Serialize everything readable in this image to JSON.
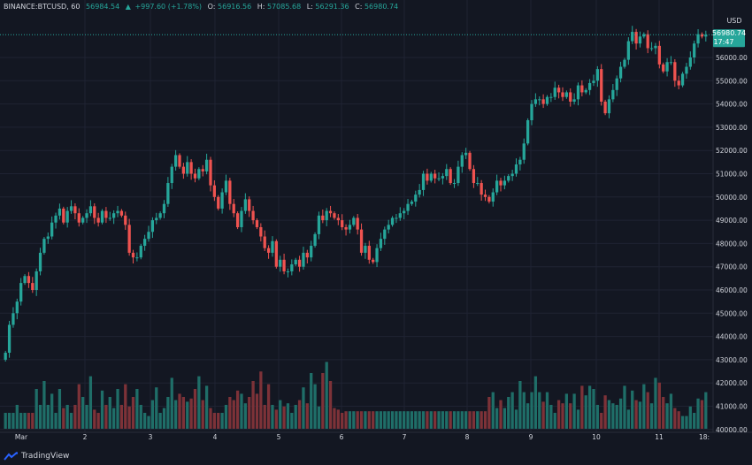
{
  "header": {
    "symbol": "BINANCE:BTCUSD, 60",
    "last": "56984.54",
    "change": "+997.60 (+1.78%)",
    "o_label": "O:",
    "o_value": "56916.56",
    "h_label": "H:",
    "h_value": "57085.68",
    "l_label": "L:",
    "l_value": "56291.36",
    "c_label": "C:",
    "c_value": "56980.74"
  },
  "currency_label": "USD",
  "current_price": {
    "value": "56980.74",
    "countdown": "17:47"
  },
  "brand": {
    "name": "TradingView",
    "icon": "tradingview-logo-icon"
  },
  "colors": {
    "background": "#131722",
    "grid": "#1f2333",
    "up": "#26a69a",
    "down": "#ef5350",
    "up_volume": "#1f6e68",
    "down_volume": "#7d3238",
    "text": "#d1d4dc",
    "price_line": "#26a69a"
  },
  "chart_data": {
    "type": "candlestick",
    "title": "BINANCE:BTCUSD, 60",
    "ylabel": "USD",
    "ylim": [
      40000,
      57800
    ],
    "ytick_labels": [
      "40000.00",
      "41000.00",
      "42000.00",
      "43000.00",
      "44000.00",
      "45000.00",
      "46000.00",
      "47000.00",
      "48000.00",
      "49000.00",
      "50000.00",
      "51000.00",
      "52000.00",
      "53000.00",
      "54000.00",
      "55000.00",
      "56000.00"
    ],
    "x_tick_labels": [
      "Mar",
      "2",
      "3",
      "4",
      "5",
      "6",
      "7",
      "8",
      "9",
      "10",
      "11",
      "18:"
    ],
    "grid": true,
    "close_series": [
      43300,
      44500,
      45000,
      45500,
      46300,
      46600,
      46300,
      46000,
      46800,
      47600,
      48200,
      48300,
      48900,
      49200,
      49500,
      48900,
      49400,
      49600,
      49300,
      48900,
      49100,
      49300,
      49600,
      49100,
      48900,
      49400,
      49100,
      49100,
      49300,
      49400,
      49200,
      48800,
      47600,
      47400,
      47400,
      47900,
      48200,
      48500,
      49000,
      49100,
      49300,
      49700,
      50600,
      51300,
      51800,
      51300,
      51000,
      51500,
      51000,
      50800,
      51200,
      51100,
      51600,
      50500,
      50000,
      49500,
      50200,
      50700,
      49700,
      49300,
      48700,
      49400,
      49900,
      49400,
      49000,
      48700,
      48300,
      47800,
      47600,
      48100,
      47000,
      47300,
      46800,
      46800,
      47100,
      47300,
      47000,
      47600,
      47400,
      47900,
      48400,
      49200,
      49000,
      49400,
      49300,
      49100,
      49000,
      48700,
      48600,
      48800,
      49100,
      48600,
      47600,
      47900,
      47300,
      47200,
      47800,
      48200,
      48600,
      48800,
      49100,
      49100,
      49300,
      49400,
      49700,
      49800,
      50100,
      50300,
      51000,
      50700,
      51000,
      50800,
      50800,
      50900,
      51200,
      50600,
      50600,
      51300,
      51800,
      51900,
      51200,
      50600,
      50600,
      50100,
      50000,
      49800,
      50200,
      50700,
      50500,
      50700,
      50900,
      51000,
      51400,
      51600,
      52300,
      53300,
      54000,
      54200,
      54200,
      54000,
      54300,
      54300,
      54700,
      54500,
      54300,
      54500,
      54100,
      54200,
      54800,
      54500,
      54600,
      54900,
      55000,
      55500,
      54100,
      53600,
      54200,
      54600,
      55100,
      55600,
      55900,
      56700,
      57100,
      56600,
      56900,
      57000,
      56400,
      56400,
      56500,
      55700,
      55400,
      55800,
      55800,
      55000,
      54800,
      55300,
      55600,
      56000,
      56600,
      57000,
      56900,
      56980.74
    ],
    "volume_series": [
      1.0,
      1.0,
      1.0,
      1.5,
      1.0,
      1.0,
      1.0,
      1.0,
      2.5,
      1.5,
      3.0,
      1.5,
      2.2,
      1.0,
      2.5,
      1.3,
      1.5,
      1.0,
      1.5,
      2.8,
      2.0,
      1.5,
      3.3,
      1.2,
      1.0,
      2.4,
      1.5,
      2.0,
      1.3,
      2.5,
      1.5,
      2.8,
      1.4,
      2.0,
      2.5,
      1.5,
      1.0,
      0.8,
      1.8,
      2.6,
      1.0,
      1.3,
      2.0,
      3.2,
      1.8,
      2.2,
      2.0,
      1.7,
      1.9,
      2.5,
      3.3,
      1.8,
      2.7,
      1.3,
      1.0,
      1.0,
      1.0,
      1.5,
      2.0,
      1.8,
      2.4,
      2.2,
      1.6,
      2.0,
      3.0,
      2.2,
      3.6,
      1.5,
      2.8,
      1.5,
      1.2,
      1.8,
      1.4,
      1.6,
      1.0,
      1.5,
      1.8,
      2.6,
      1.6,
      3.5,
      2.8,
      1.4,
      3.5,
      4.2,
      3.0,
      1.3,
      1.2,
      1.0,
      1.1,
      1.1,
      1.1,
      1.1,
      1.1,
      1.1,
      1.1,
      1.1,
      1.1,
      1.1,
      1.1,
      1.1,
      1.1,
      1.1,
      1.1,
      1.1,
      1.1,
      1.1,
      1.1,
      1.1,
      1.1,
      1.1,
      1.1,
      1.1,
      1.1,
      1.1,
      1.1,
      1.1,
      1.1,
      1.1,
      1.1,
      1.1,
      1.1,
      1.1,
      1.1,
      1.1,
      1.1,
      2.0,
      2.3,
      1.3,
      1.8,
      1.3,
      2.0,
      2.3,
      1.2,
      3.0,
      2.3,
      1.6,
      2.3,
      3.3,
      2.3,
      1.7,
      2.3,
      1.5,
      1.0,
      1.8,
      1.6,
      2.2,
      1.6,
      2.2,
      1.2,
      2.7,
      2.1,
      2.7,
      2.5,
      1.5,
      1.0,
      2.1,
      1.8,
      1.6,
      1.5,
      1.9,
      2.7,
      1.2,
      2.4,
      1.8,
      1.7,
      2.8,
      2.3,
      1.6,
      3.2,
      2.9,
      2.0,
      1.6,
      2.2,
      1.3,
      1.1,
      0.8,
      0.8,
      1.4,
      1.0,
      1.9,
      1.8,
      2.3,
      2.8,
      3.3,
      2.9,
      2.2,
      1.5
    ]
  }
}
